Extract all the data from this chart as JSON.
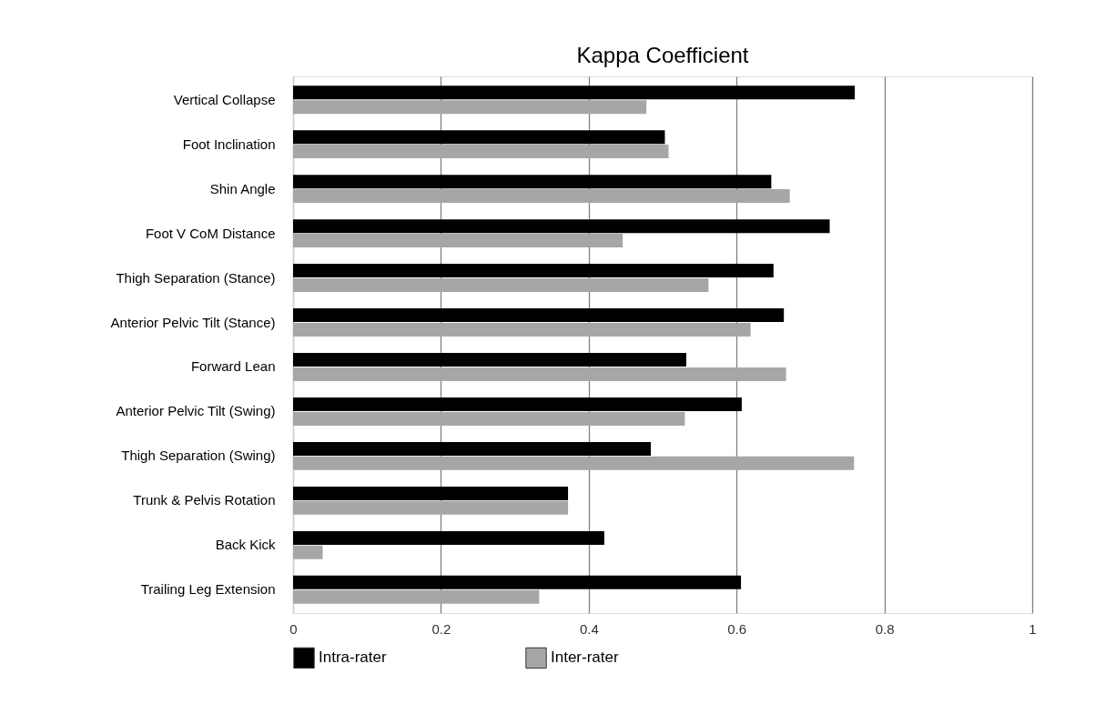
{
  "chart_data": {
    "type": "bar",
    "orientation": "horizontal",
    "title": "Kappa Coefficient",
    "categories": [
      "Vertical Collapse",
      "Foot Inclination",
      "Shin Angle",
      "Foot V CoM Distance",
      "Thigh Separation (Stance)",
      "Anterior Pelvic Tilt (Stance)",
      "Forward Lean",
      "Anterior Pelvic Tilt (Swing)",
      "Thigh Separation (Swing)",
      "Trunk & Pelvis Rotation",
      "Back Kick",
      "Trailing Leg Extension"
    ],
    "series": [
      {
        "name": "Intra-rater",
        "color": "#000000",
        "values": [
          0.76,
          0.503,
          0.647,
          0.726,
          0.65,
          0.664,
          0.532,
          0.607,
          0.484,
          0.372,
          0.421,
          0.606
        ]
      },
      {
        "name": "Inter-rater",
        "color": "#a6a6a6",
        "values": [
          0.478,
          0.508,
          0.672,
          0.446,
          0.562,
          0.619,
          0.667,
          0.53,
          0.759,
          0.372,
          0.04,
          0.333
        ]
      }
    ],
    "xlim": [
      0,
      1
    ],
    "xticks": [
      0,
      0.2,
      0.4,
      0.6,
      0.8,
      1
    ],
    "grid": "x",
    "legend": "bottom"
  }
}
